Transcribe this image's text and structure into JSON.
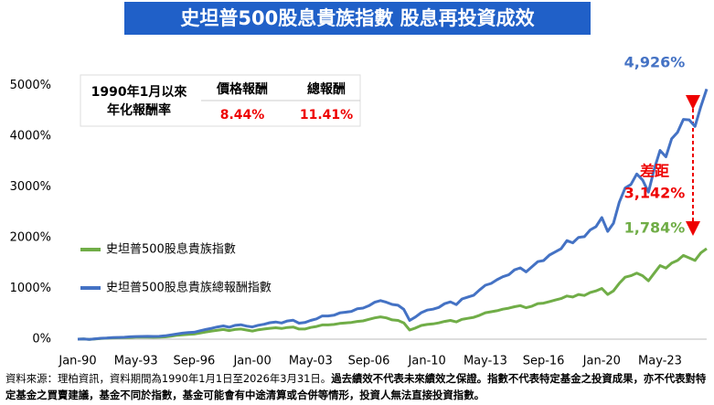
{
  "chart_data": {
    "type": "line",
    "title": "史坦普500股息貴族指數 股息再投資成效",
    "categories": [
      "Jan-90",
      null,
      null,
      null,
      null,
      null,
      null,
      null,
      null,
      null,
      "May-93",
      null,
      null,
      null,
      null,
      null,
      null,
      null,
      null,
      null,
      "Sep-96",
      null,
      null,
      null,
      null,
      null,
      null,
      null,
      null,
      null,
      "Jan-00",
      null,
      null,
      null,
      null,
      null,
      null,
      null,
      null,
      null,
      "May-03",
      null,
      null,
      null,
      null,
      null,
      null,
      null,
      null,
      null,
      "Sep-06",
      null,
      null,
      null,
      null,
      null,
      null,
      null,
      null,
      null,
      "Jan-10",
      null,
      null,
      null,
      null,
      null,
      null,
      null,
      null,
      null,
      "May-13",
      null,
      null,
      null,
      null,
      null,
      null,
      null,
      null,
      null,
      "Sep-16",
      null,
      null,
      null,
      null,
      null,
      null,
      null,
      null,
      null,
      "Jan-20",
      null,
      null,
      null,
      null,
      null,
      null,
      null,
      null,
      null,
      "May-23",
      null,
      null,
      null,
      null,
      null,
      null,
      null,
      null
    ],
    "series": [
      {
        "name": "史坦普500股息貴族指數",
        "color": "#70ad47",
        "values": [
          0,
          5,
          -5,
          5,
          15,
          20,
          25,
          28,
          30,
          35,
          40,
          42,
          40,
          38,
          40,
          45,
          60,
          75,
          85,
          95,
          100,
          120,
          140,
          160,
          175,
          190,
          170,
          190,
          200,
          180,
          160,
          185,
          200,
          215,
          225,
          210,
          230,
          240,
          200,
          200,
          230,
          250,
          280,
          280,
          290,
          310,
          320,
          330,
          350,
          360,
          390,
          420,
          440,
          420,
          380,
          370,
          320,
          180,
          220,
          270,
          290,
          300,
          320,
          350,
          370,
          340,
          390,
          410,
          430,
          470,
          520,
          540,
          560,
          590,
          610,
          640,
          660,
          620,
          650,
          700,
          710,
          740,
          770,
          800,
          850,
          830,
          880,
          860,
          920,
          950,
          1000,
          880,
          950,
          1100,
          1220,
          1250,
          1300,
          1250,
          1150,
          1300,
          1450,
          1400,
          1500,
          1550,
          1650,
          1600,
          1550,
          1700,
          1784
        ]
      },
      {
        "name": "史坦普500股息貴族總報酬指數",
        "color": "#4472c4",
        "values": [
          0,
          5,
          -5,
          8,
          18,
          23,
          32,
          35,
          37,
          46,
          52,
          54,
          56,
          54,
          56,
          66,
          83,
          101,
          118,
          130,
          136,
          166,
          191,
          215,
          242,
          261,
          236,
          271,
          284,
          258,
          242,
          274,
          294,
          325,
          339,
          319,
          358,
          372,
          316,
          328,
          370,
          399,
          457,
          457,
          472,
          517,
          532,
          547,
          597,
          612,
          659,
          727,
          759,
          727,
          685,
          668,
          587,
          370,
          438,
          522,
          573,
          590,
          625,
          698,
          734,
          681,
          793,
          830,
          866,
          968,
          1062,
          1099,
          1171,
          1229,
          1267,
          1364,
          1404,
          1325,
          1426,
          1527,
          1548,
          1656,
          1718,
          1781,
          1941,
          1898,
          2005,
          2019,
          2151,
          2217,
          2395,
          2123,
          2281,
          2697,
          2977,
          3047,
          3254,
          3135,
          2895,
          3347,
          3716,
          3593,
          3948,
          4075,
          4328,
          4320,
          4190,
          4580,
          4926
        ]
      }
    ],
    "ylim": [
      0,
      5600
    ],
    "yticks": [
      {
        "value": 0,
        "label": "0%"
      },
      {
        "value": 1000,
        "label": "1000%"
      },
      {
        "value": 2000,
        "label": "2000%"
      },
      {
        "value": 3000,
        "label": "3000%"
      },
      {
        "value": 4000,
        "label": "4000%"
      },
      {
        "value": 5000,
        "label": "5000%"
      }
    ],
    "annotations": [
      "4,926%",
      "1,784%",
      "差距",
      "3,142%"
    ],
    "return_table": {
      "row_label": [
        "1990年1月以來",
        "年化報酬率"
      ],
      "headers": [
        "價格報酬",
        "總報酬"
      ],
      "values": [
        "8.44%",
        "11.41%"
      ]
    },
    "footnote": {
      "source": "資料來源：理柏資訊，資料期間為1990年1月1日至2026年3月31日。",
      "disclaimer": "過去績效不代表未來績效之保證。指數不代表特定基金之投資成果，亦不代表對特定基金之買賣建議，基金不同於指數，基金可能會有中途清算或合併等情形，投資人無法直接投資指數。"
    }
  }
}
